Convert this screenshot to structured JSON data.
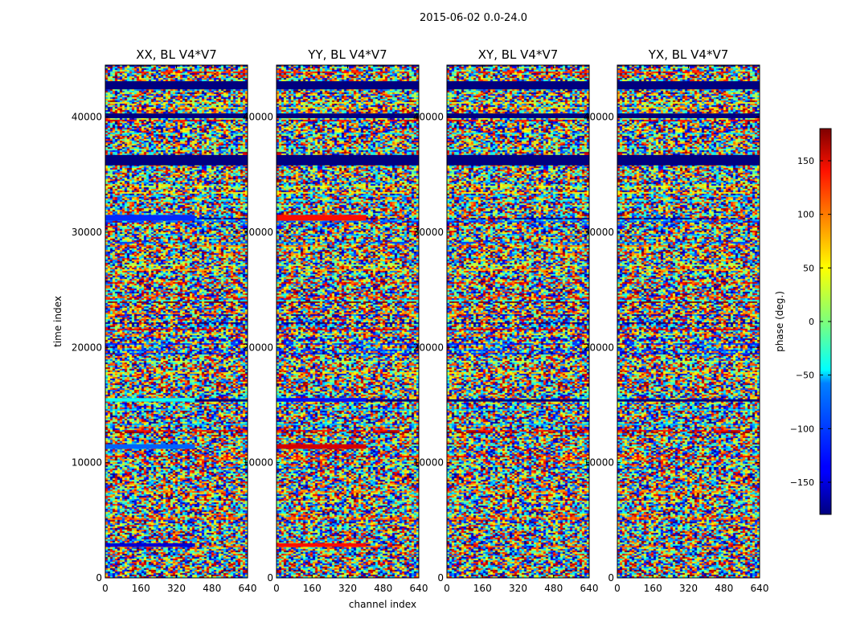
{
  "chart_data": {
    "type": "heatmap",
    "title": "2015-06-02 0.0-24.0",
    "xlabel": "channel index",
    "ylabel": "time index",
    "xlim": [
      0,
      640
    ],
    "ylim": [
      0,
      44500
    ],
    "x_ticks": [
      0,
      160,
      320,
      480,
      640
    ],
    "y_ticks": [
      0,
      10000,
      20000,
      30000,
      40000
    ],
    "colormap": "jet",
    "colorbar": {
      "label": "phase (deg.)",
      "range": [
        -180,
        180
      ],
      "ticks": [
        -150,
        -100,
        -50,
        0,
        50,
        100,
        150
      ],
      "tick_labels": [
        "−150",
        "−100",
        "−50",
        "0",
        "50",
        "100",
        "150"
      ]
    },
    "panels": [
      {
        "title": "XX, BL V4*V7",
        "polarization": "XX"
      },
      {
        "title": "YY, BL V4*V7",
        "polarization": "YY"
      },
      {
        "title": "XY, BL V4*V7",
        "polarization": "XY"
      },
      {
        "title": "YX, BL V4*V7",
        "polarization": "YX"
      }
    ],
    "flagged_time_bands": [
      [
        42400,
        43100
      ],
      [
        35800,
        36700
      ],
      [
        39900,
        40300
      ],
      [
        15300,
        15500
      ]
    ],
    "coherent_bands": [
      {
        "panel": "XX",
        "time_range": [
          31000,
          31500
        ],
        "phase": -120
      },
      {
        "panel": "XX",
        "time_range": [
          15300,
          15600
        ],
        "phase": -40
      },
      {
        "panel": "XX",
        "time_range": [
          11200,
          11600
        ],
        "phase": -100
      },
      {
        "panel": "XX",
        "time_range": [
          2700,
          3000
        ],
        "phase": -150
      },
      {
        "panel": "YY",
        "time_range": [
          31000,
          31500
        ],
        "phase": 130
      },
      {
        "panel": "YY",
        "time_range": [
          15300,
          15600
        ],
        "phase": -130
      },
      {
        "panel": "YY",
        "time_range": [
          11200,
          11600
        ],
        "phase": 150
      },
      {
        "panel": "YY",
        "time_range": [
          2700,
          3000
        ],
        "phase": 130
      }
    ]
  }
}
